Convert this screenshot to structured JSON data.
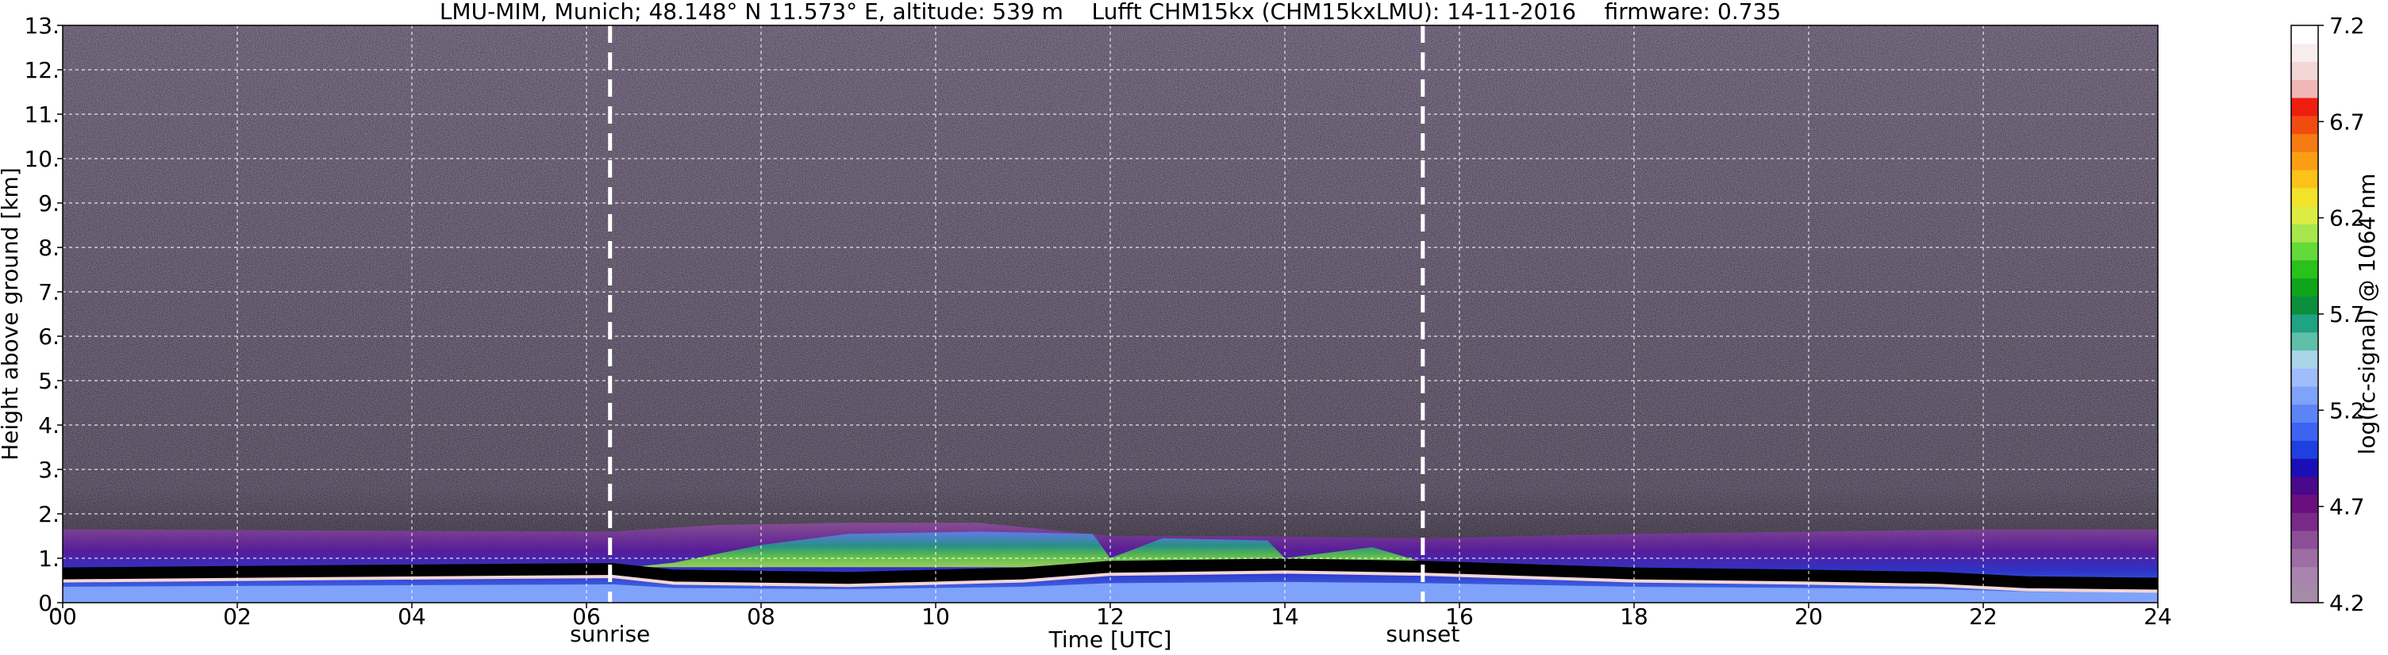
{
  "chart_data": {
    "type": "heatmap",
    "title": "LMU-MIM, Munich; 48.148° N 11.573° E, altitude: 539 m    Lufft CHM15kx (CHM15kxLMU): 14-11-2016    firmware: 0.735",
    "xlabel": "Time [UTC]",
    "ylabel": "Height above ground [km]",
    "xlim": [
      0,
      24
    ],
    "ylim": [
      0,
      13
    ],
    "x_ticks": [
      "00",
      "02",
      "04",
      "06",
      "08",
      "10",
      "12",
      "14",
      "16",
      "18",
      "20",
      "22",
      "24"
    ],
    "y_ticks": [
      "0.",
      "1.",
      "2.",
      "3.",
      "4.",
      "5.",
      "6.",
      "7.",
      "8.",
      "9.",
      "10.",
      "11.",
      "12.",
      "13."
    ],
    "grid": true,
    "colorbar": {
      "label": "log(rc-signal) @ 1064 nm",
      "range": [
        4.2,
        7.2
      ],
      "ticks": [
        "4.2",
        "4.7",
        "5.2",
        "5.7",
        "6.2",
        "6.7",
        "7.2"
      ],
      "colors": [
        "#a58ba8",
        "#a883ad",
        "#9c6fa3",
        "#8c4f97",
        "#7a2a89",
        "#6b0f80",
        "#4a088a",
        "#1a0fb5",
        "#1f3fe0",
        "#3d63f2",
        "#5d84f7",
        "#7fa2fa",
        "#9fbcfb",
        "#a9d3e8",
        "#5fbfa8",
        "#1ea383",
        "#0c8e3c",
        "#0fa51b",
        "#28c21b",
        "#63d93a",
        "#a8e64d",
        "#dcec43",
        "#f4e12a",
        "#fcc21a",
        "#fb9e14",
        "#f67a12",
        "#f24b10",
        "#ee1e10",
        "#f0b7b6",
        "#f3d6d6",
        "#f9ecec",
        "#ffffff"
      ]
    },
    "events": [
      {
        "label": "sunrise",
        "time": 6.27
      },
      {
        "label": "sunset",
        "time": 15.58
      }
    ],
    "layers": {
      "background_color": "#4b3b56",
      "signal_layer": {
        "x": [
          0,
          6.3,
          7.5,
          9.0,
          10.5,
          12.0,
          13.5,
          15.6,
          18.0,
          20.0,
          22.0,
          24.0
        ],
        "top_km": [
          1.65,
          1.6,
          1.75,
          1.8,
          1.8,
          1.5,
          1.5,
          1.45,
          1.55,
          1.6,
          1.65,
          1.65
        ]
      },
      "boundary_layer": {
        "x": [
          0,
          3.0,
          6.3,
          7.0,
          9.0,
          11.0,
          12.0,
          14.0,
          15.6,
          18.0,
          20.0,
          21.5,
          22.5,
          24.0
        ],
        "height_km": [
          0.65,
          0.7,
          0.75,
          0.6,
          0.55,
          0.65,
          0.8,
          0.85,
          0.8,
          0.65,
          0.6,
          0.55,
          0.45,
          0.42
        ]
      }
    }
  }
}
